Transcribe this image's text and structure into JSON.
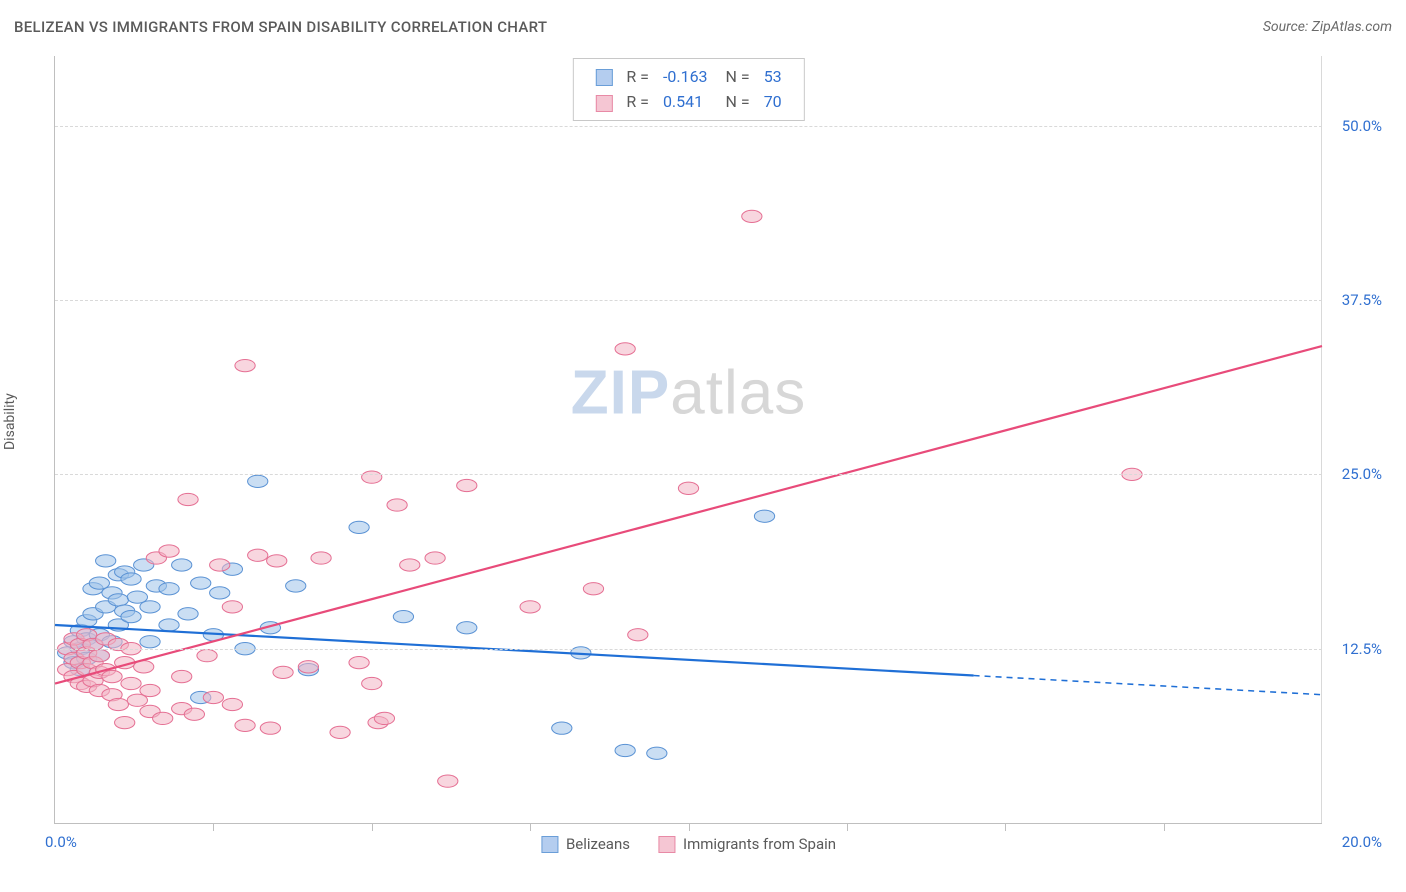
{
  "title": "BELIZEAN VS IMMIGRANTS FROM SPAIN DISABILITY CORRELATION CHART",
  "source": "Source: ZipAtlas.com",
  "ylabel": "Disability",
  "watermark": {
    "left": "ZIP",
    "right": "atlas"
  },
  "chart": {
    "type": "scatter",
    "xlim": [
      0,
      20
    ],
    "ylim": [
      0,
      55
    ],
    "x_ticks_minor": [
      2.5,
      5,
      7.5,
      10,
      12.5,
      15,
      17.5
    ],
    "x_tick_labels": {
      "min": "0.0%",
      "max": "20.0%"
    },
    "y_gridlines": [
      12.5,
      25.0,
      37.5,
      50.0
    ],
    "y_tick_labels": [
      "12.5%",
      "25.0%",
      "37.5%",
      "50.0%"
    ],
    "grid_color": "#d9d9d9",
    "axis_color": "#bfbfbf",
    "background_color": "#ffffff",
    "title_fontsize": 15,
    "label_fontsize": 14,
    "tick_fontsize": 15,
    "tick_color": "#2f6fd0",
    "series": [
      {
        "name": "Belizeans",
        "color_fill": "#9fc2ea",
        "color_stroke": "#5a92d4",
        "fill_opacity": 0.55,
        "marker_r": 8,
        "trend": {
          "slope": -0.25,
          "intercept": 14.2,
          "solid_until_x": 14.5,
          "color": "#1f6fd6",
          "width": 2.2
        },
        "legend_swatch_fill": "#b4cdef",
        "legend_swatch_stroke": "#6a9ed8",
        "points": [
          [
            0.2,
            12.2
          ],
          [
            0.3,
            13.0
          ],
          [
            0.3,
            11.5
          ],
          [
            0.4,
            12.5
          ],
          [
            0.4,
            13.8
          ],
          [
            0.4,
            11.0
          ],
          [
            0.5,
            13.2
          ],
          [
            0.5,
            14.5
          ],
          [
            0.5,
            11.8
          ],
          [
            0.6,
            12.8
          ],
          [
            0.6,
            15.0
          ],
          [
            0.6,
            16.8
          ],
          [
            0.7,
            13.5
          ],
          [
            0.7,
            12.0
          ],
          [
            0.7,
            17.2
          ],
          [
            0.8,
            15.5
          ],
          [
            0.8,
            18.8
          ],
          [
            0.9,
            13.0
          ],
          [
            0.9,
            16.5
          ],
          [
            1.0,
            14.2
          ],
          [
            1.0,
            17.8
          ],
          [
            1.0,
            16.0
          ],
          [
            1.1,
            18.0
          ],
          [
            1.1,
            15.2
          ],
          [
            1.2,
            17.5
          ],
          [
            1.2,
            14.8
          ],
          [
            1.3,
            16.2
          ],
          [
            1.4,
            18.5
          ],
          [
            1.5,
            15.5
          ],
          [
            1.5,
            13.0
          ],
          [
            1.6,
            17.0
          ],
          [
            1.8,
            14.2
          ],
          [
            1.8,
            16.8
          ],
          [
            2.0,
            18.5
          ],
          [
            2.1,
            15.0
          ],
          [
            2.3,
            17.2
          ],
          [
            2.3,
            9.0
          ],
          [
            2.5,
            13.5
          ],
          [
            2.6,
            16.5
          ],
          [
            2.8,
            18.2
          ],
          [
            3.0,
            12.5
          ],
          [
            3.2,
            24.5
          ],
          [
            3.4,
            14.0
          ],
          [
            3.8,
            17.0
          ],
          [
            4.8,
            21.2
          ],
          [
            5.5,
            14.8
          ],
          [
            8.0,
            6.8
          ],
          [
            9.0,
            5.2
          ],
          [
            9.5,
            5.0
          ],
          [
            11.2,
            22.0
          ],
          [
            8.3,
            12.2
          ],
          [
            6.5,
            14.0
          ],
          [
            4.0,
            11.0
          ]
        ]
      },
      {
        "name": "Immigrants from Spain",
        "color_fill": "#f2b4c5",
        "color_stroke": "#e56f93",
        "fill_opacity": 0.55,
        "marker_r": 8,
        "trend": {
          "slope": 1.21,
          "intercept": 10.0,
          "solid_until_x": 20.0,
          "color": "#e84b7a",
          "width": 2.2
        },
        "legend_swatch_fill": "#f5c6d3",
        "legend_swatch_stroke": "#e88aa6",
        "points": [
          [
            0.2,
            11.0
          ],
          [
            0.2,
            12.5
          ],
          [
            0.3,
            10.5
          ],
          [
            0.3,
            11.8
          ],
          [
            0.3,
            13.2
          ],
          [
            0.4,
            10.0
          ],
          [
            0.4,
            11.5
          ],
          [
            0.4,
            12.8
          ],
          [
            0.5,
            9.8
          ],
          [
            0.5,
            11.0
          ],
          [
            0.5,
            12.2
          ],
          [
            0.5,
            13.5
          ],
          [
            0.6,
            10.2
          ],
          [
            0.6,
            11.5
          ],
          [
            0.6,
            12.8
          ],
          [
            0.7,
            9.5
          ],
          [
            0.7,
            10.8
          ],
          [
            0.7,
            12.0
          ],
          [
            0.8,
            13.2
          ],
          [
            0.8,
            11.0
          ],
          [
            0.9,
            9.2
          ],
          [
            0.9,
            10.5
          ],
          [
            1.0,
            12.8
          ],
          [
            1.0,
            8.5
          ],
          [
            1.1,
            11.5
          ],
          [
            1.1,
            7.2
          ],
          [
            1.2,
            10.0
          ],
          [
            1.2,
            12.5
          ],
          [
            1.3,
            8.8
          ],
          [
            1.4,
            11.2
          ],
          [
            1.5,
            9.5
          ],
          [
            1.5,
            8.0
          ],
          [
            1.6,
            19.0
          ],
          [
            1.7,
            7.5
          ],
          [
            1.8,
            19.5
          ],
          [
            2.0,
            10.5
          ],
          [
            2.0,
            8.2
          ],
          [
            2.1,
            23.2
          ],
          [
            2.2,
            7.8
          ],
          [
            2.4,
            12.0
          ],
          [
            2.5,
            9.0
          ],
          [
            2.6,
            18.5
          ],
          [
            2.8,
            8.5
          ],
          [
            2.8,
            15.5
          ],
          [
            3.0,
            7.0
          ],
          [
            3.0,
            32.8
          ],
          [
            3.2,
            19.2
          ],
          [
            3.4,
            6.8
          ],
          [
            3.5,
            18.8
          ],
          [
            3.6,
            10.8
          ],
          [
            4.0,
            11.2
          ],
          [
            4.2,
            19.0
          ],
          [
            4.5,
            6.5
          ],
          [
            5.0,
            24.8
          ],
          [
            5.0,
            10.0
          ],
          [
            5.1,
            7.2
          ],
          [
            5.2,
            7.5
          ],
          [
            5.4,
            22.8
          ],
          [
            5.6,
            18.5
          ],
          [
            6.0,
            19.0
          ],
          [
            6.2,
            3.0
          ],
          [
            6.5,
            24.2
          ],
          [
            7.5,
            15.5
          ],
          [
            8.5,
            16.8
          ],
          [
            9.0,
            34.0
          ],
          [
            9.2,
            13.5
          ],
          [
            10.0,
            24.0
          ],
          [
            11.0,
            43.5
          ],
          [
            17.0,
            25.0
          ],
          [
            4.8,
            11.5
          ]
        ]
      }
    ],
    "stats_box": {
      "rows": [
        {
          "series_idx": 0,
          "r": "-0.163",
          "n": "53"
        },
        {
          "series_idx": 1,
          "r": "0.541",
          "n": "70"
        }
      ],
      "labels": {
        "r": "R =",
        "n": "N ="
      },
      "border_color": "#c8c8c8",
      "value_color": "#2f6fd0",
      "label_color": "#5a5a5a",
      "fontsize": 16
    },
    "legend": {
      "position": "bottom-center",
      "fontsize": 15,
      "text_color": "#5a5a5a"
    }
  }
}
